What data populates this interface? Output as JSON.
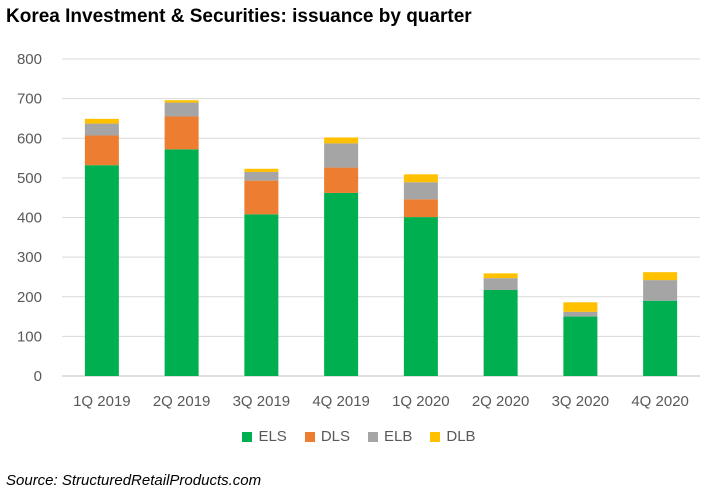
{
  "chart_data": {
    "type": "bar",
    "stacked": true,
    "title": "Korea Investment & Securities: issuance by quarter",
    "xlabel": "",
    "ylabel": "",
    "categories": [
      "1Q 2019",
      "2Q 2019",
      "3Q 2019",
      "4Q 2019",
      "1Q 2020",
      "2Q 2020",
      "3Q 2020",
      "4Q 2020"
    ],
    "series": [
      {
        "name": "ELS",
        "color": "#00b050",
        "values": [
          532,
          572,
          408,
          462,
          401,
          217,
          150,
          190
        ]
      },
      {
        "name": "DLS",
        "color": "#ed7d31",
        "values": [
          75,
          83,
          85,
          64,
          45,
          0,
          0,
          0
        ]
      },
      {
        "name": "ELB",
        "color": "#a5a5a5",
        "values": [
          30,
          35,
          22,
          61,
          43,
          30,
          12,
          52
        ]
      },
      {
        "name": "DLB",
        "color": "#ffc000",
        "values": [
          12,
          6,
          8,
          15,
          20,
          12,
          24,
          20
        ]
      }
    ],
    "ylim": [
      0,
      800
    ],
    "yticks": [
      0,
      100,
      200,
      300,
      400,
      500,
      600,
      700,
      800
    ],
    "grid": true,
    "legend_position": "bottom"
  },
  "source": "Source: StructuredRetailProducts.com"
}
